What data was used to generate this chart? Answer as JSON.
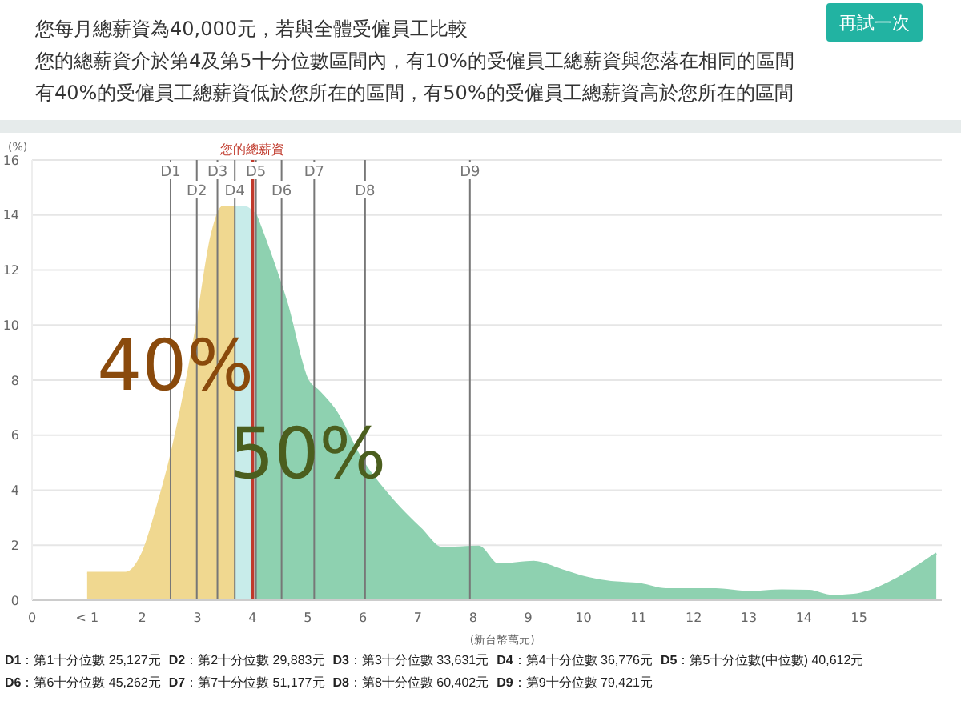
{
  "chart_data": {
    "type": "area",
    "title": "您每月總薪資為40,000元，若與全體受僱員工比較",
    "subtitle": "您的總薪資介於第4及第5十分位數區間內，有10%的受僱員工總薪資與您落在相同的區間",
    "xlabel": "(新台幣萬元)",
    "ylabel": "(%)",
    "series": [
      {
        "color": "#f0d890",
        "x": [
          1,
          1.7,
          2,
          2.3,
          2.5,
          2.97,
          3.26,
          3.46,
          3.6776
        ],
        "values": [
          1.0,
          1.0,
          1.7,
          3.6,
          5.1,
          9.8,
          13.3,
          14.3,
          14.3
        ]
      },
      {
        "color": "#c8ecea",
        "x": [
          3.6776,
          3.84,
          4.0612
        ],
        "values": [
          14.3,
          14.3,
          14.0
        ]
      },
      {
        "color": "#8ed1b0",
        "x": [
          4.0612,
          4.23,
          4.62,
          5.0,
          5.2,
          5.5,
          5.98,
          6.56,
          7.05,
          7.44,
          8.1,
          8.45,
          9.1,
          9.6,
          10.1,
          10.5,
          11.0,
          11.5,
          12.4,
          13.0,
          13.6,
          14.1,
          14.5,
          14.9,
          15.2,
          15.7,
          16.4
        ],
        "values": [
          14.0,
          13.1,
          10.8,
          8.0,
          7.6,
          6.9,
          5.1,
          3.6,
          2.6,
          1.9,
          1.95,
          1.3,
          1.4,
          1.1,
          0.8,
          0.66,
          0.6,
          0.4,
          0.4,
          0.3,
          0.36,
          0.34,
          0.16,
          0.2,
          0.34,
          0.8,
          1.7
        ]
      }
    ],
    "xlim": [
      0,
      16.5
    ],
    "xticks": [
      0,
      {
        "value": 1,
        "label": "< 1"
      },
      2,
      3,
      4,
      5,
      6,
      7,
      8,
      9,
      10,
      11,
      12,
      13,
      14,
      15
    ],
    "ylim": [
      0,
      16
    ],
    "yticks": [
      0,
      2,
      4,
      6,
      8,
      10,
      12,
      14,
      16
    ],
    "grid": "y",
    "legend": false,
    "ref_lines": [
      {
        "axis": "x",
        "value": 4.0,
        "label": "您的總薪資",
        "color": "#c0392b"
      },
      {
        "axis": "x",
        "value": 2.5127,
        "label": "D1",
        "color": "#777777"
      },
      {
        "axis": "x",
        "value": 2.9883,
        "label": "D2",
        "color": "#777777"
      },
      {
        "axis": "x",
        "value": 3.3631,
        "label": "D3",
        "color": "#777777"
      },
      {
        "axis": "x",
        "value": 3.6776,
        "label": "D4",
        "color": "#777777"
      },
      {
        "axis": "x",
        "value": 4.0612,
        "label": "D5",
        "color": "#777777"
      },
      {
        "axis": "x",
        "value": 4.5262,
        "label": "D6",
        "color": "#777777"
      },
      {
        "axis": "x",
        "value": 5.1177,
        "label": "D7",
        "color": "#777777"
      },
      {
        "axis": "x",
        "value": 6.0402,
        "label": "D8",
        "color": "#777777"
      },
      {
        "axis": "x",
        "value": 7.9421,
        "label": "D9",
        "color": "#777777"
      }
    ],
    "annotations": [
      "有40%的受僱員工總薪資低於您所在的區間，有50%的受僱員工總薪資高於您所在的區間",
      "再試一次",
      "40%",
      "50%",
      "D1：第1十分位數 25,127元",
      "D2：第2十分位數 29,883元",
      "D3：第3十分位數 33,631元",
      "D4：第4十分位數 36,776元",
      "D5：第5十分位數(中位數) 40,612元",
      "D6：第6十分位數 45,262元",
      "D7：第7十分位數 51,177元",
      "D8：第8十分位數 60,402元",
      "D9：第9十分位數 79,421元"
    ]
  }
}
